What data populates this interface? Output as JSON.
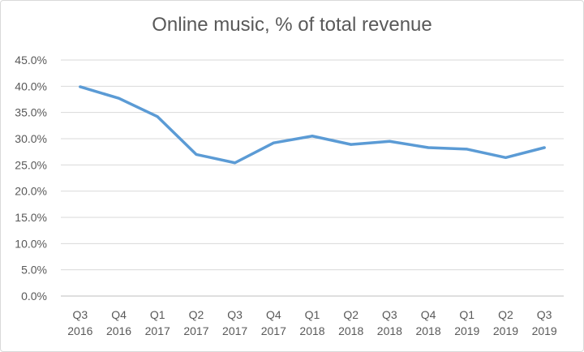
{
  "chart_data": {
    "type": "line",
    "title": "Online music, % of total revenue",
    "xlabel": "",
    "ylabel": "",
    "categories": [
      [
        "Q3",
        "2016"
      ],
      [
        "Q4",
        "2016"
      ],
      [
        "Q1",
        "2017"
      ],
      [
        "Q2",
        "2017"
      ],
      [
        "Q3",
        "2017"
      ],
      [
        "Q4",
        "2017"
      ],
      [
        "Q1",
        "2018"
      ],
      [
        "Q2",
        "2018"
      ],
      [
        "Q3",
        "2018"
      ],
      [
        "Q4",
        "2018"
      ],
      [
        "Q1",
        "2019"
      ],
      [
        "Q2",
        "2019"
      ],
      [
        "Q3",
        "2019"
      ]
    ],
    "series": [
      {
        "values": [
          39.9,
          37.7,
          34.2,
          27.0,
          25.4,
          29.2,
          30.5,
          28.9,
          29.5,
          28.3,
          28.0,
          26.4,
          28.3
        ]
      }
    ],
    "y_ticks": [
      "0.0%",
      "5.0%",
      "10.0%",
      "15.0%",
      "20.0%",
      "25.0%",
      "30.0%",
      "35.0%",
      "40.0%",
      "45.0%"
    ],
    "ylim": [
      0,
      45
    ],
    "grid": true,
    "legend": "none",
    "line_color": "#5b9bd5",
    "grid_color": "#d9d9d9",
    "text_color": "#595959"
  }
}
